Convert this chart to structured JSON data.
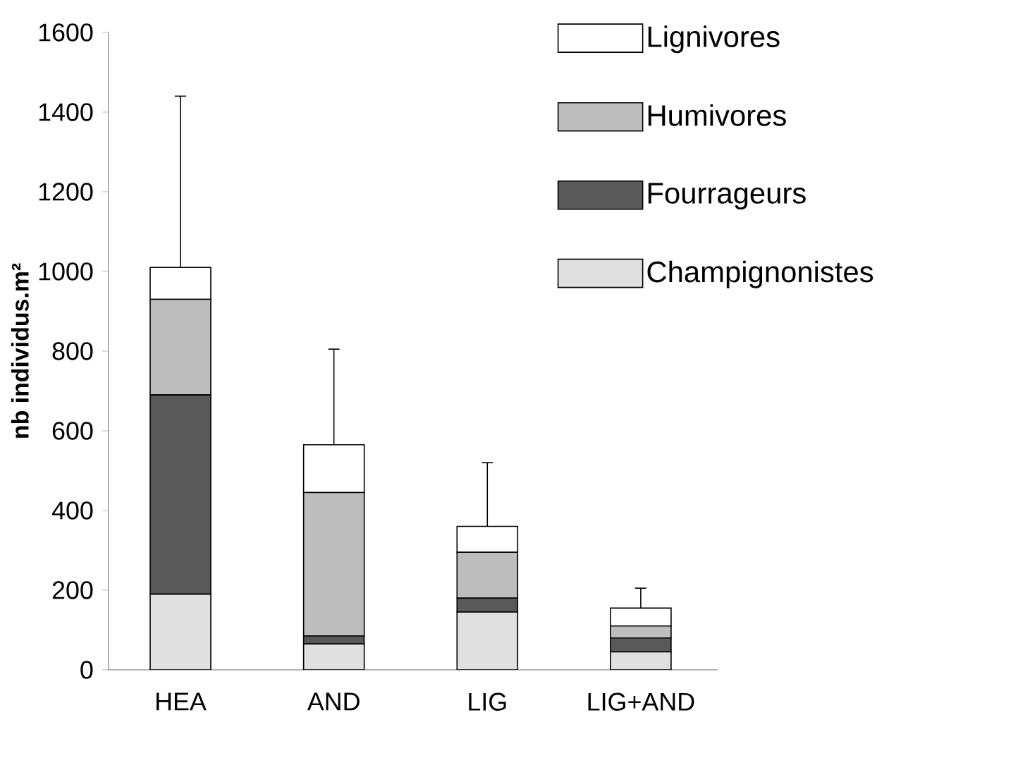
{
  "chart_data": {
    "type": "bar",
    "stacked": true,
    "ylabel": "nb individus.m²",
    "categories": [
      "HEA",
      "AND",
      "LIG",
      "LIG+AND"
    ],
    "series": [
      {
        "name": "Champignonistes",
        "color": "#e0e0e0",
        "values": [
          190,
          65,
          145,
          45
        ]
      },
      {
        "name": "Fourrageurs",
        "color": "#595959",
        "values": [
          500,
          20,
          35,
          35
        ]
      },
      {
        "name": "Humivores",
        "color": "#bdbdbd",
        "values": [
          240,
          360,
          115,
          30
        ]
      },
      {
        "name": "Lignivores",
        "color": "#ffffff",
        "values": [
          80,
          120,
          65,
          45
        ],
        "errors": [
          [
            1010,
            1440
          ],
          [
            565,
            805
          ],
          [
            360,
            520
          ],
          [
            155,
            205
          ]
        ]
      }
    ],
    "ylim": [
      0,
      1600
    ],
    "yticks": [
      0,
      200,
      400,
      600,
      800,
      1000,
      1200,
      1400,
      1600
    ],
    "grid": false,
    "legend": "top right"
  }
}
